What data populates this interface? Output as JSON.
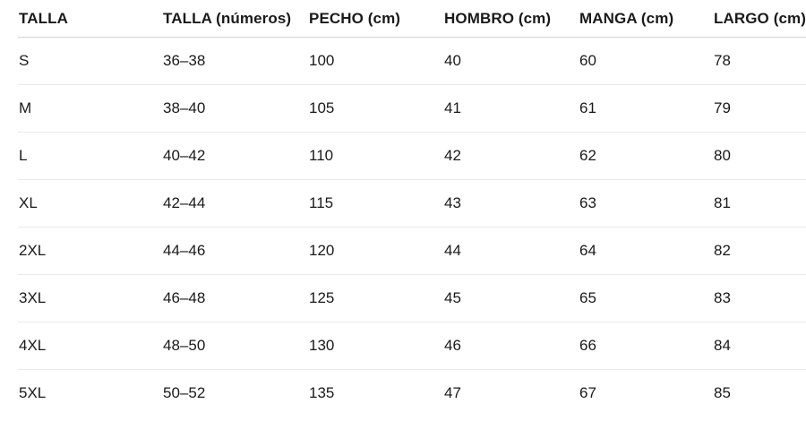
{
  "chart_data": {
    "type": "table",
    "columns": [
      "TALLA",
      "TALLA (números)",
      "PECHO (cm)",
      "HOMBRO (cm)",
      "MANGA (cm)",
      "LARGO (cm)"
    ],
    "rows": [
      [
        "S",
        "36–38",
        "100",
        "40",
        "60",
        "78"
      ],
      [
        "M",
        "38–40",
        "105",
        "41",
        "61",
        "79"
      ],
      [
        "L",
        "40–42",
        "110",
        "42",
        "62",
        "80"
      ],
      [
        "XL",
        "42–44",
        "115",
        "43",
        "63",
        "81"
      ],
      [
        "2XL",
        "44–46",
        "120",
        "44",
        "64",
        "82"
      ],
      [
        "3XL",
        "46–48",
        "125",
        "45",
        "65",
        "83"
      ],
      [
        "4XL",
        "48–50",
        "130",
        "46",
        "66",
        "84"
      ],
      [
        "5XL",
        "50–52",
        "135",
        "47",
        "67",
        "85"
      ]
    ],
    "layout": {
      "grid": "horizontal-row-dividers-only",
      "legend": "none"
    }
  },
  "colors": {
    "background": "#ffffff",
    "text": "#1a1a1a",
    "header_divider": "#d4d4d4",
    "row_divider": "#e9e9e9"
  }
}
